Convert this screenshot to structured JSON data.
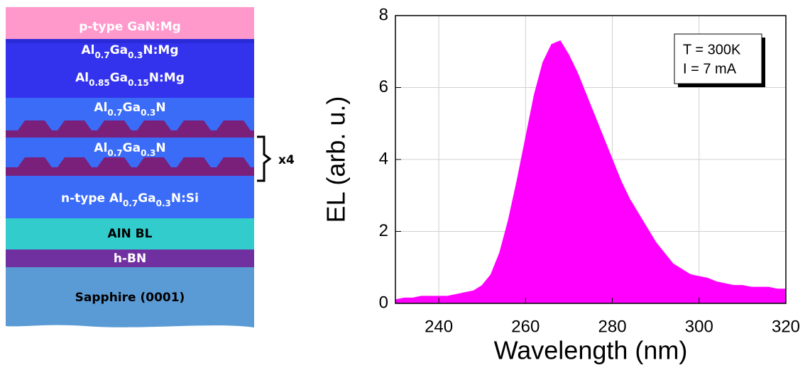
{
  "diagram": {
    "layers": [
      {
        "label": [
          "p-type GaN:Mg"
        ],
        "color": "#ff99cc"
      },
      {
        "label": [
          "Al",
          "0.7",
          "Ga",
          "0.3",
          "N:Mg"
        ],
        "color": "#3333ee"
      },
      {
        "label": [
          "Al",
          "0.85",
          "Ga",
          "0.15",
          "N:Mg"
        ],
        "color": "#3333ee"
      },
      {
        "label": [
          "Al",
          "0.7",
          "Ga",
          "0.3",
          "N"
        ],
        "color": "#3a6cf7"
      },
      {
        "label": [
          "Al",
          "0.7",
          "Ga",
          "0.3",
          "N"
        ],
        "color": "#3a6cf7"
      },
      {
        "label": [
          "n-type Al",
          "0.7",
          "Ga",
          "0.3",
          "N:Si"
        ],
        "color": "#3a6cf7"
      },
      {
        "label": [
          "AlN BL"
        ],
        "color": "#33cccc"
      },
      {
        "label": [
          "h-BN"
        ],
        "color": "#7030a0"
      },
      {
        "label": [
          "Sapphire (0001)"
        ],
        "color": "#5b9bd5"
      }
    ],
    "repeat_label": "x4"
  },
  "chart_data": {
    "type": "area",
    "xlabel": "Wavelength (nm)",
    "ylabel": "EL (arb. u.)",
    "annotations": [
      "T = 300K",
      "I = 7 mA"
    ],
    "x": [
      230,
      232,
      234,
      236,
      238,
      240,
      242,
      244,
      246,
      248,
      250,
      252,
      254,
      256,
      258,
      260,
      262,
      264,
      266,
      268,
      270,
      272,
      274,
      276,
      278,
      280,
      282,
      284,
      286,
      288,
      290,
      292,
      294,
      296,
      298,
      300,
      302,
      304,
      306,
      308,
      310,
      312,
      314,
      316,
      318,
      320
    ],
    "series": [
      {
        "color": "#ff00ff",
        "values": [
          0.1,
          0.15,
          0.15,
          0.2,
          0.2,
          0.2,
          0.2,
          0.25,
          0.3,
          0.35,
          0.5,
          0.8,
          1.4,
          2.3,
          3.4,
          4.6,
          5.8,
          6.7,
          7.2,
          7.3,
          6.9,
          6.4,
          5.8,
          5.2,
          4.6,
          4.0,
          3.4,
          2.9,
          2.5,
          2.1,
          1.7,
          1.4,
          1.1,
          0.95,
          0.8,
          0.75,
          0.7,
          0.6,
          0.55,
          0.5,
          0.5,
          0.45,
          0.45,
          0.45,
          0.4,
          0.4
        ]
      }
    ],
    "xlim": [
      230,
      320
    ],
    "ylim": [
      0,
      8
    ],
    "xticks": [
      240,
      260,
      280,
      300,
      320
    ],
    "yticks": [
      0,
      2,
      4,
      6,
      8
    ],
    "grid": true
  }
}
